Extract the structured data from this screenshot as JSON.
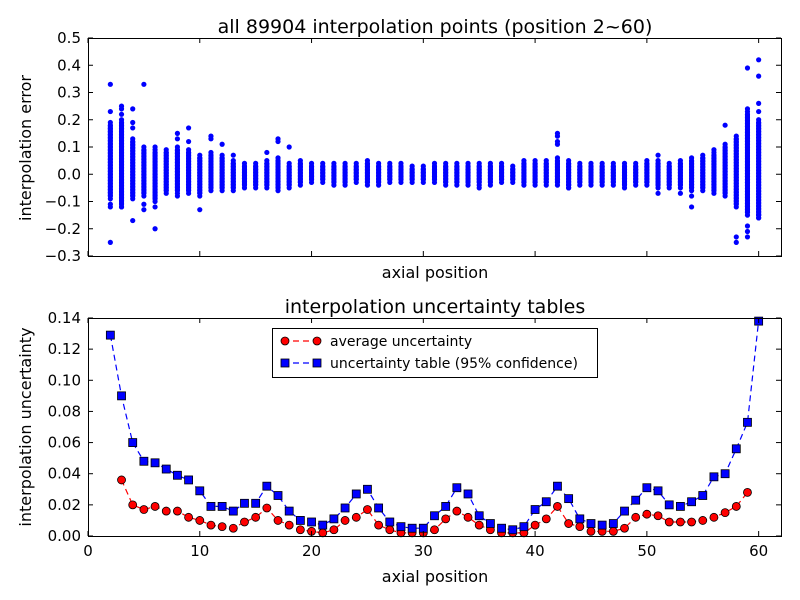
{
  "chart_data": [
    {
      "type": "scatter",
      "title": "all 89904 interpolation points (position 2~60)",
      "xlabel": "axial position",
      "ylabel": "interpolation error",
      "xlim": [
        0,
        62
      ],
      "ylim": [
        -0.3,
        0.5
      ],
      "yticks": [
        "−0.3",
        "−0.2",
        "−0.1",
        "0.0",
        "0.1",
        "0.2",
        "0.3",
        "0.4",
        "0.5"
      ],
      "ytick_values": [
        -0.3,
        -0.2,
        -0.1,
        0.0,
        0.1,
        0.2,
        0.3,
        0.4,
        0.5
      ],
      "xticks_shown": false,
      "marker_color": "#0000ff",
      "point_ranges": {
        "x": [
          2,
          3,
          4,
          5,
          6,
          7,
          8,
          9,
          10,
          11,
          12,
          13,
          14,
          15,
          16,
          17,
          18,
          19,
          20,
          21,
          22,
          23,
          24,
          25,
          26,
          27,
          28,
          29,
          30,
          31,
          32,
          33,
          34,
          35,
          36,
          37,
          38,
          39,
          40,
          41,
          42,
          43,
          44,
          45,
          46,
          47,
          48,
          49,
          50,
          51,
          52,
          53,
          54,
          55,
          56,
          57,
          58,
          59,
          60
        ],
        "dense_min": [
          -0.09,
          -0.12,
          -0.09,
          -0.08,
          -0.1,
          -0.07,
          -0.07,
          -0.07,
          -0.08,
          -0.06,
          -0.06,
          -0.06,
          -0.05,
          -0.05,
          -0.05,
          -0.06,
          -0.05,
          -0.04,
          -0.03,
          -0.03,
          -0.04,
          -0.04,
          -0.03,
          -0.04,
          -0.04,
          -0.03,
          -0.03,
          -0.03,
          -0.03,
          -0.03,
          -0.04,
          -0.04,
          -0.04,
          -0.04,
          -0.04,
          -0.03,
          -0.03,
          -0.04,
          -0.04,
          -0.04,
          -0.04,
          -0.05,
          -0.04,
          -0.04,
          -0.04,
          -0.04,
          -0.05,
          -0.04,
          -0.04,
          -0.05,
          -0.05,
          -0.05,
          -0.06,
          -0.06,
          -0.07,
          -0.08,
          -0.12,
          -0.15,
          -0.16
        ],
        "dense_max": [
          0.19,
          0.2,
          0.13,
          0.1,
          0.09,
          0.09,
          0.1,
          0.09,
          0.07,
          0.08,
          0.07,
          0.05,
          0.04,
          0.04,
          0.05,
          0.06,
          0.04,
          0.05,
          0.04,
          0.04,
          0.04,
          0.04,
          0.04,
          0.05,
          0.04,
          0.04,
          0.04,
          0.03,
          0.03,
          0.04,
          0.04,
          0.04,
          0.04,
          0.04,
          0.04,
          0.04,
          0.03,
          0.05,
          0.05,
          0.05,
          0.06,
          0.05,
          0.04,
          0.04,
          0.04,
          0.04,
          0.04,
          0.04,
          0.05,
          0.05,
          0.04,
          0.05,
          0.06,
          0.07,
          0.08,
          0.11,
          0.14,
          0.23,
          0.2
        ],
        "outliers": [
          [
            2,
            0.33
          ],
          [
            2,
            0.23
          ],
          [
            2,
            -0.25
          ],
          [
            2,
            -0.11
          ],
          [
            2,
            -0.12
          ],
          [
            3,
            0.25
          ],
          [
            3,
            0.24
          ],
          [
            3,
            0.22
          ],
          [
            3,
            -0.12
          ],
          [
            4,
            0.24
          ],
          [
            4,
            0.19
          ],
          [
            4,
            0.17
          ],
          [
            4,
            -0.17
          ],
          [
            5,
            0.33
          ],
          [
            5,
            -0.13
          ],
          [
            5,
            -0.11
          ],
          [
            6,
            0.1
          ],
          [
            6,
            -0.2
          ],
          [
            6,
            -0.12
          ],
          [
            8,
            0.15
          ],
          [
            8,
            0.13
          ],
          [
            8,
            -0.08
          ],
          [
            9,
            0.17
          ],
          [
            9,
            0.12
          ],
          [
            10,
            -0.13
          ],
          [
            11,
            0.14
          ],
          [
            11,
            0.13
          ],
          [
            12,
            0.11
          ],
          [
            13,
            0.07
          ],
          [
            16,
            0.08
          ],
          [
            17,
            0.13
          ],
          [
            17,
            0.12
          ],
          [
            18,
            0.1
          ],
          [
            35,
            -0.05
          ],
          [
            42,
            0.15
          ],
          [
            42,
            0.14
          ],
          [
            42,
            0.12
          ],
          [
            42,
            0.11
          ],
          [
            43,
            -0.04
          ],
          [
            43,
            -0.05
          ],
          [
            51,
            0.07
          ],
          [
            51,
            -0.07
          ],
          [
            53,
            -0.07
          ],
          [
            54,
            -0.12
          ],
          [
            54,
            -0.08
          ],
          [
            56,
            0.09
          ],
          [
            57,
            0.18
          ],
          [
            58,
            -0.25
          ],
          [
            58,
            -0.23
          ],
          [
            59,
            0.39
          ],
          [
            59,
            0.24
          ],
          [
            59,
            -0.23
          ],
          [
            59,
            -0.21
          ],
          [
            59,
            -0.19
          ],
          [
            60,
            0.42
          ],
          [
            60,
            0.36
          ],
          [
            60,
            0.26
          ],
          [
            60,
            0.23
          ],
          [
            60,
            -0.16
          ],
          [
            60,
            -0.15
          ]
        ]
      }
    },
    {
      "type": "line",
      "title": "interpolation uncertainty tables",
      "xlabel": "axial position",
      "ylabel": "interpolation uncertainty",
      "xlim": [
        0,
        62
      ],
      "ylim": [
        0,
        0.14
      ],
      "xticks": [
        "0",
        "10",
        "20",
        "30",
        "40",
        "50",
        "60"
      ],
      "xtick_values": [
        0,
        10,
        20,
        30,
        40,
        50,
        60
      ],
      "yticks": [
        "0.00",
        "0.02",
        "0.04",
        "0.06",
        "0.08",
        "0.10",
        "0.12",
        "0.14"
      ],
      "ytick_values": [
        0,
        0.02,
        0.04,
        0.06,
        0.08,
        0.1,
        0.12,
        0.14
      ],
      "legend_position": "top-center",
      "series": [
        {
          "name": "average uncertainty",
          "color": "#ff0000",
          "marker": "circle",
          "linestyle": "dashed",
          "x": [
            3,
            4,
            5,
            6,
            7,
            8,
            9,
            10,
            11,
            12,
            13,
            14,
            15,
            16,
            17,
            18,
            19,
            20,
            21,
            22,
            23,
            24,
            25,
            26,
            27,
            28,
            29,
            30,
            31,
            32,
            33,
            34,
            35,
            36,
            37,
            38,
            39,
            40,
            41,
            42,
            43,
            44,
            45,
            46,
            47,
            48,
            49,
            50,
            51,
            52,
            53,
            54,
            55,
            56,
            57,
            58,
            59
          ],
          "values": [
            0.036,
            0.02,
            0.017,
            0.019,
            0.016,
            0.016,
            0.012,
            0.01,
            0.007,
            0.006,
            0.005,
            0.009,
            0.012,
            0.018,
            0.01,
            0.007,
            0.004,
            0.003,
            0.002,
            0.004,
            0.01,
            0.012,
            0.017,
            0.007,
            0.004,
            0.002,
            0.002,
            0.002,
            0.004,
            0.011,
            0.016,
            0.012,
            0.007,
            0.004,
            0.002,
            0.002,
            0.002,
            0.007,
            0.011,
            0.019,
            0.008,
            0.006,
            0.003,
            0.003,
            0.003,
            0.005,
            0.012,
            0.014,
            0.013,
            0.009,
            0.009,
            0.009,
            0.01,
            0.012,
            0.015,
            0.019,
            0.028
          ]
        },
        {
          "name": "uncertainty table (95% confidence)",
          "color": "#0000ff",
          "marker": "square",
          "linestyle": "dashed",
          "x": [
            2,
            3,
            4,
            5,
            6,
            7,
            8,
            9,
            10,
            11,
            12,
            13,
            14,
            15,
            16,
            17,
            18,
            19,
            20,
            21,
            22,
            23,
            24,
            25,
            26,
            27,
            28,
            29,
            30,
            31,
            32,
            33,
            34,
            35,
            36,
            37,
            38,
            39,
            40,
            41,
            42,
            43,
            44,
            45,
            46,
            47,
            48,
            49,
            50,
            51,
            52,
            53,
            54,
            55,
            56,
            57,
            58,
            59,
            60
          ],
          "values": [
            0.129,
            0.09,
            0.06,
            0.048,
            0.047,
            0.043,
            0.039,
            0.036,
            0.029,
            0.019,
            0.019,
            0.016,
            0.021,
            0.021,
            0.032,
            0.026,
            0.016,
            0.01,
            0.009,
            0.007,
            0.011,
            0.018,
            0.027,
            0.03,
            0.018,
            0.009,
            0.006,
            0.005,
            0.005,
            0.013,
            0.019,
            0.031,
            0.027,
            0.013,
            0.008,
            0.005,
            0.004,
            0.006,
            0.017,
            0.022,
            0.032,
            0.024,
            0.011,
            0.008,
            0.007,
            0.008,
            0.016,
            0.023,
            0.031,
            0.029,
            0.02,
            0.019,
            0.022,
            0.026,
            0.038,
            0.04,
            0.056,
            0.073,
            0.138
          ]
        }
      ]
    }
  ]
}
